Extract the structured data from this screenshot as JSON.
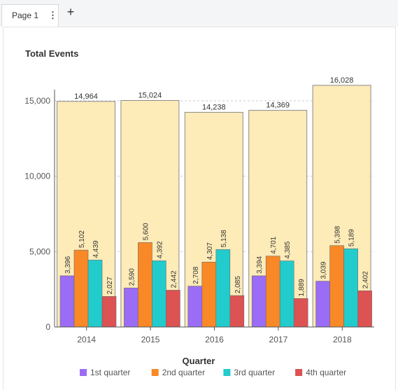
{
  "tabs": [
    {
      "label": "Page 1",
      "menu_icon": "more-vertical-icon"
    }
  ],
  "add_tab_icon": "plus-icon",
  "chart_data": {
    "type": "bar",
    "title": "Total Events",
    "xlabel": "Quarter",
    "ylabel": "",
    "categories": [
      "2014",
      "2015",
      "2016",
      "2017",
      "2018"
    ],
    "totals": [
      14964,
      15024,
      14238,
      14369,
      16028
    ],
    "totals_labels": [
      "14,964",
      "15,024",
      "14,238",
      "14,369",
      "16,028"
    ],
    "series": [
      {
        "name": "1st quarter",
        "color": "#9b6cf5",
        "values": [
          3396,
          2590,
          2708,
          3394,
          3039
        ],
        "labels": [
          "3,396",
          "2,590",
          "2,708",
          "3,394",
          "3,039"
        ]
      },
      {
        "name": "2nd quarter",
        "color": "#f98826",
        "values": [
          5102,
          5600,
          4307,
          4701,
          5398
        ],
        "labels": [
          "5,102",
          "5,600",
          "4,307",
          "4,701",
          "5,398"
        ]
      },
      {
        "name": "3rd quarter",
        "color": "#22cccc",
        "values": [
          4439,
          4392,
          5138,
          4385,
          5189
        ],
        "labels": [
          "4,439",
          "4,392",
          "5,138",
          "4,385",
          "5,189"
        ]
      },
      {
        "name": "4th quarter",
        "color": "#dd5252",
        "values": [
          2027,
          2442,
          2085,
          1889,
          2402
        ],
        "labels": [
          "2,027",
          "2,442",
          "2,085",
          "1,889",
          "2,402"
        ]
      }
    ],
    "total_color": "#fdebb8",
    "yticks": [
      0,
      5000,
      10000,
      15000
    ],
    "ytick_labels": [
      "0",
      "5,000",
      "10,000",
      "15,000"
    ],
    "ylim": [
      0,
      15000
    ],
    "grid": true,
    "legend": "bottom"
  }
}
